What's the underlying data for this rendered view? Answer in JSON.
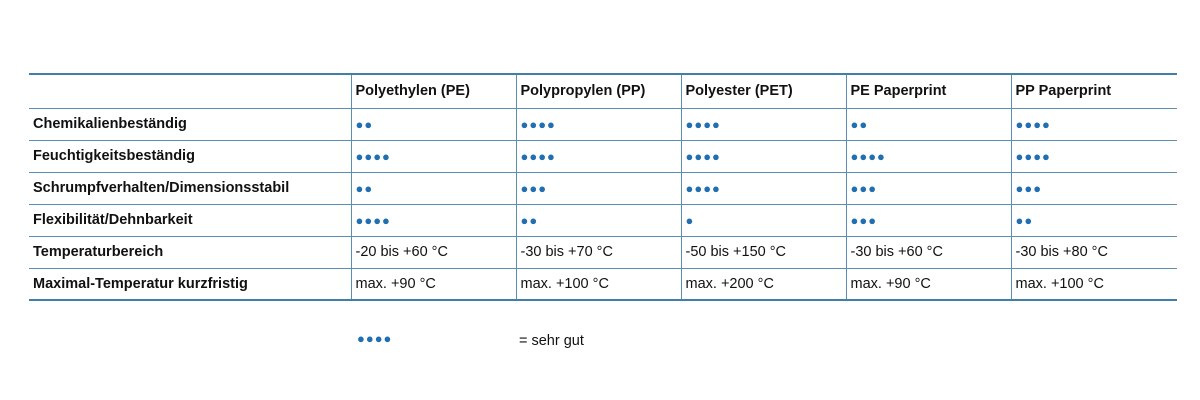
{
  "table": {
    "headers": [
      "",
      "Polyethylen (PE)",
      "Polypropylen (PP)",
      "Polyester (PET)",
      "PE Paperprint",
      "PP Paperprint"
    ],
    "rows": [
      {
        "label": "Chemikalienbeständig",
        "cells": [
          "●●",
          "●●●●",
          "●●●●",
          "●●",
          "●●●●"
        ]
      },
      {
        "label": "Feuchtigkeitsbeständig",
        "cells": [
          "●●●●",
          "●●●●",
          "●●●●",
          "●●●●",
          "●●●●"
        ]
      },
      {
        "label": "Schrumpfverhalten/Dimensionsstabil",
        "cells": [
          "●●",
          "●●●",
          "●●●●",
          "●●●",
          "●●●"
        ]
      },
      {
        "label": "Flexibilität/Dehnbarkeit",
        "cells": [
          "●●●●",
          "●●",
          "●",
          "●●●",
          "●●"
        ]
      },
      {
        "label": "Temperaturbereich",
        "cells": [
          "-20 bis +60 °C",
          "-30 bis +70 °C",
          "-50 bis +150 °C",
          "-30 bis +60 °C",
          "-30 bis +80 °C"
        ]
      },
      {
        "label": "Maximal-Temperatur kurzfristig",
        "cells": [
          "max. +90 °C",
          "max. +100 °C",
          "max. +200 °C",
          "max. +90 °C",
          "max. +100 °C"
        ]
      }
    ]
  },
  "legend": {
    "dots": "●●●●",
    "text": "= sehr gut"
  },
  "colors": {
    "dot": "#1f6fb2",
    "rule": "#5b8fb0"
  }
}
